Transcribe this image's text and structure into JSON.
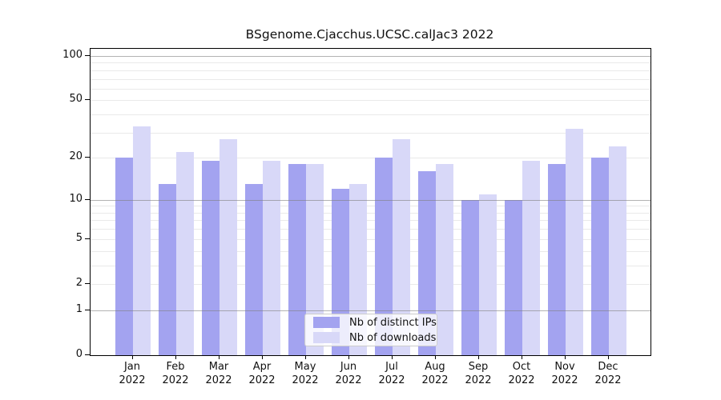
{
  "figure": {
    "title": "BSgenome.Cjacchus.UCSC.calJac3 2022"
  },
  "chart_data": {
    "type": "bar",
    "title": "BSgenome.Cjacchus.UCSC.calJac3 2022",
    "categories": [
      "Jan",
      "Feb",
      "Mar",
      "Apr",
      "May",
      "Jun",
      "Jul",
      "Aug",
      "Sep",
      "Oct",
      "Nov",
      "Dec"
    ],
    "year": "2022",
    "series": [
      {
        "name": "Nb of distinct IPs",
        "color": "#a3a3f0",
        "values": [
          20,
          13,
          19,
          13,
          18,
          12,
          20,
          16,
          10,
          10,
          18,
          20
        ]
      },
      {
        "name": "Nb of downloads",
        "color": "#d8d8f8",
        "values": [
          33,
          22,
          27,
          19,
          18,
          13,
          27,
          18,
          11,
          19,
          32,
          24
        ]
      }
    ],
    "xlabel": "",
    "ylabel": "",
    "y_scale": "log1p",
    "y_ticks": [
      0,
      1,
      2,
      5,
      10,
      20,
      50,
      100
    ],
    "y_minor_gridlines": [
      2,
      3,
      4,
      5,
      6,
      7,
      8,
      9,
      20,
      30,
      40,
      50,
      60,
      70,
      80,
      90
    ],
    "y_major_gridlines": [
      1,
      10,
      100
    ],
    "ylim": [
      0,
      112
    ],
    "grid": true,
    "legend": {
      "labels": [
        "Nb of distinct IPs",
        "Nb of downloads"
      ],
      "position": "inside-bottom-center"
    }
  },
  "colors": {
    "bar_distinct_ips": "#a3a3f0",
    "bar_downloads": "#d8d8f8",
    "grid_minor": "#e9e9e9",
    "grid_major": "#b3b3b3",
    "axis": "#000000",
    "text": "#111111",
    "legend_border": "#cccccc",
    "background": "#ffffff"
  }
}
